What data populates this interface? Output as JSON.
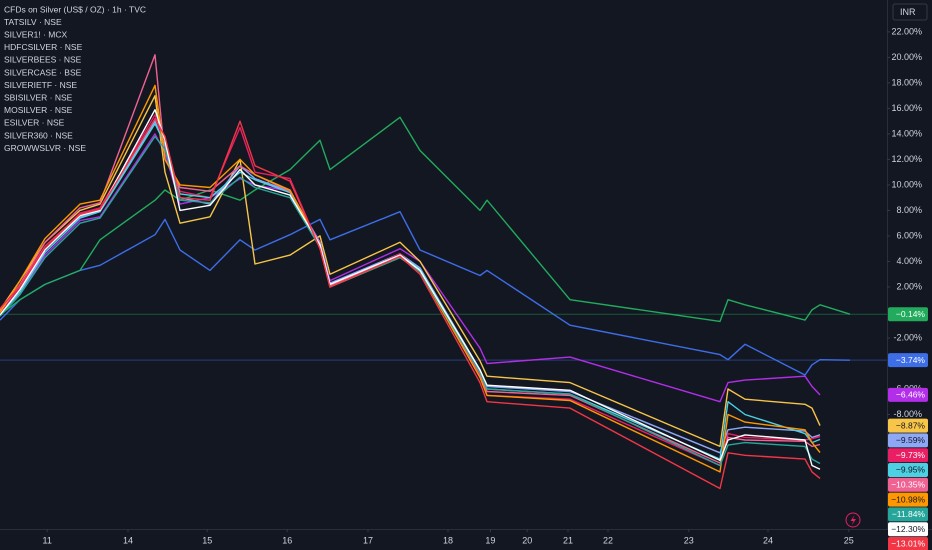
{
  "chart_data": {
    "type": "line",
    "title": "CFDs on Silver (US$ / OZ) · 1h · TVC",
    "currency": "INR",
    "x": [
      0,
      0.25,
      0.5625,
      1,
      1.25,
      1.9375,
      2.0625,
      2.25,
      2.625,
      3,
      3.1875,
      3.625,
      4,
      4.125,
      5,
      5.25,
      6,
      6.0875,
      7.125,
      9,
      9.1,
      9.3125,
      10.0625,
      10.15,
      10.25,
      10.625
    ],
    "xlim": [
      0,
      11.0875
    ],
    "xticks": [
      {
        "value": 0.59,
        "label": "11"
      },
      {
        "value": 1.6,
        "label": "14"
      },
      {
        "value": 2.59,
        "label": "15"
      },
      {
        "value": 3.59,
        "label": "16"
      },
      {
        "value": 4.6,
        "label": "17"
      },
      {
        "value": 5.6,
        "label": "18"
      },
      {
        "value": 6.13,
        "label": "19"
      },
      {
        "value": 6.59,
        "label": "20"
      },
      {
        "value": 7.1,
        "label": "21"
      },
      {
        "value": 7.6,
        "label": "22"
      },
      {
        "value": 8.61,
        "label": "23"
      },
      {
        "value": 9.6,
        "label": "24"
      },
      {
        "value": 10.61,
        "label": "25"
      }
    ],
    "ylim": [
      -16.9,
      24.5
    ],
    "yticks": [
      {
        "value": 22,
        "label": "22.00%"
      },
      {
        "value": 20,
        "label": "20.00%"
      },
      {
        "value": 18,
        "label": "18.00%"
      },
      {
        "value": 16,
        "label": "16.00%"
      },
      {
        "value": 14,
        "label": "14.00%"
      },
      {
        "value": 12,
        "label": "12.00%"
      },
      {
        "value": 10,
        "label": "10.00%"
      },
      {
        "value": 8,
        "label": "8.00%"
      },
      {
        "value": 6,
        "label": "6.00%"
      },
      {
        "value": 4,
        "label": "4.00%"
      },
      {
        "value": 2,
        "label": "2.00%"
      },
      {
        "value": -2,
        "label": "-2.00%"
      },
      {
        "value": -6,
        "label": "-6.00%"
      },
      {
        "value": -8,
        "label": "-8.00%"
      }
    ],
    "series": [
      {
        "color": "#3d6ee8",
        "price_line": true,
        "values": [
          -0.6,
          1,
          2.2,
          3.3,
          3.7,
          6.1,
          7.3,
          4.9,
          3.3,
          5.7,
          4.9,
          6.1,
          7.3,
          5.7,
          7.9,
          4.9,
          2.9,
          3.3,
          -1,
          -3.3,
          -3.7,
          -2.5,
          -4.9,
          -4.1,
          -3.7,
          -3.74
        ],
        "value_labels": [
          null,
          null,
          null,
          null,
          null,
          null,
          null,
          null,
          null,
          null,
          null,
          null,
          null,
          null,
          null,
          null,
          null,
          null,
          null,
          null,
          null,
          null,
          null,
          null,
          null,
          "−3.74%"
        ]
      },
      {
        "name": "TATSILV · NSE",
        "color": "#b22ee8",
        "values": [
          -0.3,
          1.5,
          4.5,
          7.2,
          7.5,
          14,
          12.5,
          8.5,
          9,
          10.5,
          10,
          9.5,
          5.5,
          2.5,
          5,
          4,
          -2.8,
          -4,
          -3.5,
          -7,
          -5.5,
          -5.3,
          -5,
          -5.8,
          -6.46,
          null
        ],
        "value_labels": [
          null,
          null,
          null,
          null,
          null,
          null,
          null,
          null,
          null,
          null,
          null,
          null,
          null,
          null,
          null,
          null,
          null,
          null,
          null,
          null,
          null,
          null,
          null,
          null,
          "−6.46%",
          null
        ]
      },
      {
        "name": "SILVER1! · MCX",
        "color": "#22ab5c",
        "price_line": true,
        "values": [
          -0.2,
          1,
          2.2,
          3.3,
          5.7,
          8.8,
          9.6,
          8.8,
          9.6,
          8.8,
          9.6,
          11.2,
          13.5,
          11.2,
          15.3,
          12.7,
          8,
          8.8,
          1,
          -0.7,
          1,
          0.6,
          -0.6,
          0.2,
          0.6,
          -0.14
        ],
        "value_labels": [
          null,
          null,
          null,
          null,
          null,
          null,
          null,
          null,
          null,
          null,
          null,
          null,
          null,
          null,
          null,
          null,
          null,
          null,
          null,
          null,
          null,
          null,
          null,
          null,
          null,
          "−0.14%"
        ]
      },
      {
        "name": "HDFCSILVER · NSE",
        "color": "#f7c548",
        "values": [
          0.2,
          2.5,
          5.5,
          8,
          8.5,
          17,
          11,
          7,
          7.5,
          12,
          3.8,
          4.5,
          6,
          3,
          5.5,
          4,
          -3.8,
          -5,
          -5.5,
          -10.5,
          -6,
          -6.8,
          -7.2,
          -7.5,
          -8.87,
          null
        ],
        "value_labels": [
          null,
          null,
          null,
          null,
          null,
          null,
          null,
          null,
          null,
          null,
          null,
          null,
          null,
          null,
          null,
          null,
          null,
          null,
          null,
          null,
          null,
          null,
          null,
          null,
          "−8.87%",
          null
        ]
      },
      {
        "name": "SILVERBEES · NSE",
        "color": "#8fa8f5",
        "values": [
          -0.2,
          1.8,
          5,
          7.5,
          8,
          15,
          13,
          9,
          8.5,
          11.5,
          10.5,
          9.5,
          5.5,
          2.3,
          4.6,
          3.5,
          -4.5,
          -5.8,
          -6.2,
          -11,
          -9.2,
          -9,
          -9.3,
          -9.8,
          -9.59,
          null
        ],
        "value_labels": [
          null,
          null,
          null,
          null,
          null,
          null,
          null,
          null,
          null,
          null,
          null,
          null,
          null,
          null,
          null,
          null,
          null,
          null,
          null,
          null,
          null,
          null,
          null,
          null,
          "−9.59%",
          null
        ]
      },
      {
        "name": "SILVERCASE · BSE",
        "color": "#e91e63",
        "values": [
          0,
          2,
          5,
          7.8,
          8.2,
          15.5,
          13,
          9.5,
          9,
          14.5,
          11,
          10.5,
          5,
          2,
          4.6,
          3.3,
          -5,
          -6.5,
          -6.8,
          -12,
          -9.5,
          -9.8,
          -10,
          -9.9,
          -9.73,
          null
        ],
        "value_labels": [
          null,
          null,
          null,
          null,
          null,
          null,
          null,
          null,
          null,
          null,
          null,
          null,
          null,
          null,
          null,
          null,
          null,
          null,
          null,
          null,
          null,
          null,
          null,
          null,
          "−9.73%",
          null
        ]
      },
      {
        "name": "SILVERIETF · NSE",
        "color": "#4dd0e1",
        "values": [
          -0.2,
          1.6,
          4.7,
          7.4,
          7.9,
          14.8,
          13.2,
          9.3,
          9,
          11,
          10.4,
          9.4,
          5.3,
          2.2,
          4.5,
          3.4,
          -4.6,
          -6,
          -6.4,
          -11.5,
          -7,
          -8,
          -9.5,
          -10.2,
          -9.95,
          null
        ],
        "value_labels": [
          null,
          null,
          null,
          null,
          null,
          null,
          null,
          null,
          null,
          null,
          null,
          null,
          null,
          null,
          null,
          null,
          null,
          null,
          null,
          null,
          null,
          null,
          null,
          null,
          "−9.95%",
          null
        ]
      },
      {
        "name": "SBISILVER · NSE",
        "color": "#f06292",
        "values": [
          0.1,
          2.2,
          5.5,
          8.2,
          8.6,
          20.2,
          12,
          9.8,
          9.5,
          11.5,
          10.8,
          9.5,
          5.4,
          2.1,
          4.4,
          3.2,
          -4.8,
          -6.2,
          -6.5,
          -11.8,
          -9.8,
          -10,
          -10.1,
          -10.5,
          -10.35,
          null
        ],
        "value_labels": [
          null,
          null,
          null,
          null,
          null,
          null,
          null,
          null,
          null,
          null,
          null,
          null,
          null,
          null,
          null,
          null,
          null,
          null,
          null,
          null,
          null,
          null,
          null,
          null,
          "−10.35%",
          null
        ]
      },
      {
        "name": "MOSILVER · NSE",
        "color": "#ff9800",
        "values": [
          0,
          2.5,
          5.8,
          8.5,
          8.8,
          17.8,
          12,
          10,
          9.8,
          12,
          10.8,
          9.6,
          5.2,
          2,
          4.3,
          3.2,
          -5.1,
          -6.5,
          -6.9,
          -12.5,
          -8,
          -8.6,
          -9.2,
          -10.2,
          -10.98,
          null
        ],
        "value_labels": [
          null,
          null,
          null,
          null,
          null,
          null,
          null,
          null,
          null,
          null,
          null,
          null,
          null,
          null,
          null,
          null,
          null,
          null,
          null,
          null,
          null,
          null,
          null,
          null,
          "−10.98%",
          null
        ]
      },
      {
        "name": "ESILVER · NSE",
        "color": "#26a69a",
        "values": [
          -0.3,
          1.4,
          4.3,
          7,
          7.4,
          13.8,
          12.8,
          8.8,
          8.6,
          10.6,
          9.8,
          9,
          5.1,
          2,
          4.3,
          3.2,
          -4.7,
          -6,
          -6.4,
          -12,
          -10.4,
          -10.2,
          -10.5,
          -11.5,
          -11.84,
          null
        ],
        "value_labels": [
          null,
          null,
          null,
          null,
          null,
          null,
          null,
          null,
          null,
          null,
          null,
          null,
          null,
          null,
          null,
          null,
          null,
          null,
          null,
          null,
          null,
          null,
          null,
          null,
          "−11.84%",
          null
        ]
      },
      {
        "name": "SILVER360 · NSE",
        "color": "#ffffff",
        "values": [
          -0.2,
          1.8,
          4.9,
          7.6,
          8,
          15.9,
          13.5,
          8,
          8.4,
          11.2,
          10,
          9.2,
          5.3,
          2.2,
          4.5,
          3.3,
          -4.5,
          -5.7,
          -6.1,
          -11.6,
          -10,
          -9.6,
          -10,
          -12,
          -12.3,
          null
        ],
        "value_labels": [
          null,
          null,
          null,
          null,
          null,
          null,
          null,
          null,
          null,
          null,
          null,
          null,
          null,
          null,
          null,
          null,
          null,
          null,
          null,
          null,
          null,
          null,
          null,
          null,
          "−12.30%",
          null
        ]
      },
      {
        "name": "GROWWSLVR · NSE",
        "color": "#f23645",
        "values": [
          0.3,
          2.1,
          5.2,
          7.7,
          8.1,
          15.2,
          13.8,
          9,
          8.8,
          15,
          11.5,
          10.3,
          5,
          2,
          4.4,
          3,
          -5.5,
          -7,
          -7.5,
          -13.8,
          -11,
          -11.2,
          -11.5,
          -12.5,
          -13.01,
          null
        ],
        "value_labels": [
          null,
          null,
          null,
          null,
          null,
          null,
          null,
          null,
          null,
          null,
          null,
          null,
          null,
          null,
          null,
          null,
          null,
          null,
          null,
          null,
          null,
          null,
          null,
          null,
          "−13.01%",
          null
        ]
      }
    ]
  }
}
